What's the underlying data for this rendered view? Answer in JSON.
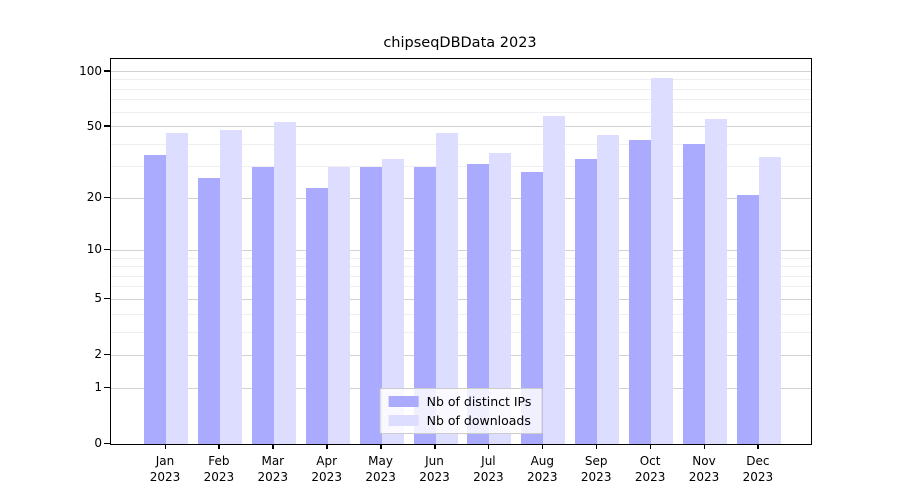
{
  "chart_data": {
    "type": "bar",
    "title": "chipseqDBData 2023",
    "categories": [
      "Jan",
      "Feb",
      "Mar",
      "Apr",
      "May",
      "Jun",
      "Jul",
      "Aug",
      "Sep",
      "Oct",
      "Nov",
      "Dec"
    ],
    "category_year": "2023",
    "series": [
      {
        "name": "Nb of distinct IPs",
        "color": "#aaaaff",
        "values": [
          35,
          26,
          30,
          23,
          30,
          30,
          31,
          28,
          33,
          42,
          40,
          21
        ]
      },
      {
        "name": "Nb of downloads",
        "color": "#ddddff",
        "values": [
          46,
          48,
          53,
          30,
          33,
          46,
          36,
          57,
          45,
          92,
          55,
          34
        ]
      }
    ],
    "xlabel": "",
    "ylabel": "",
    "y_axis": {
      "scale": "log10(1+y)",
      "major_ticks": [
        0,
        1,
        2,
        5,
        10,
        20,
        50,
        100
      ],
      "minor_gridlines": [
        3,
        4,
        6,
        7,
        8,
        9,
        30,
        40,
        60,
        70,
        80,
        90
      ],
      "top_value": 113
    },
    "legend_position": "bottom-center",
    "grid": "horizontal",
    "colors": {
      "major_grid": "#d2d2d2",
      "minor_grid": "#efefef",
      "axis": "#000000",
      "background": "#ffffff"
    }
  }
}
